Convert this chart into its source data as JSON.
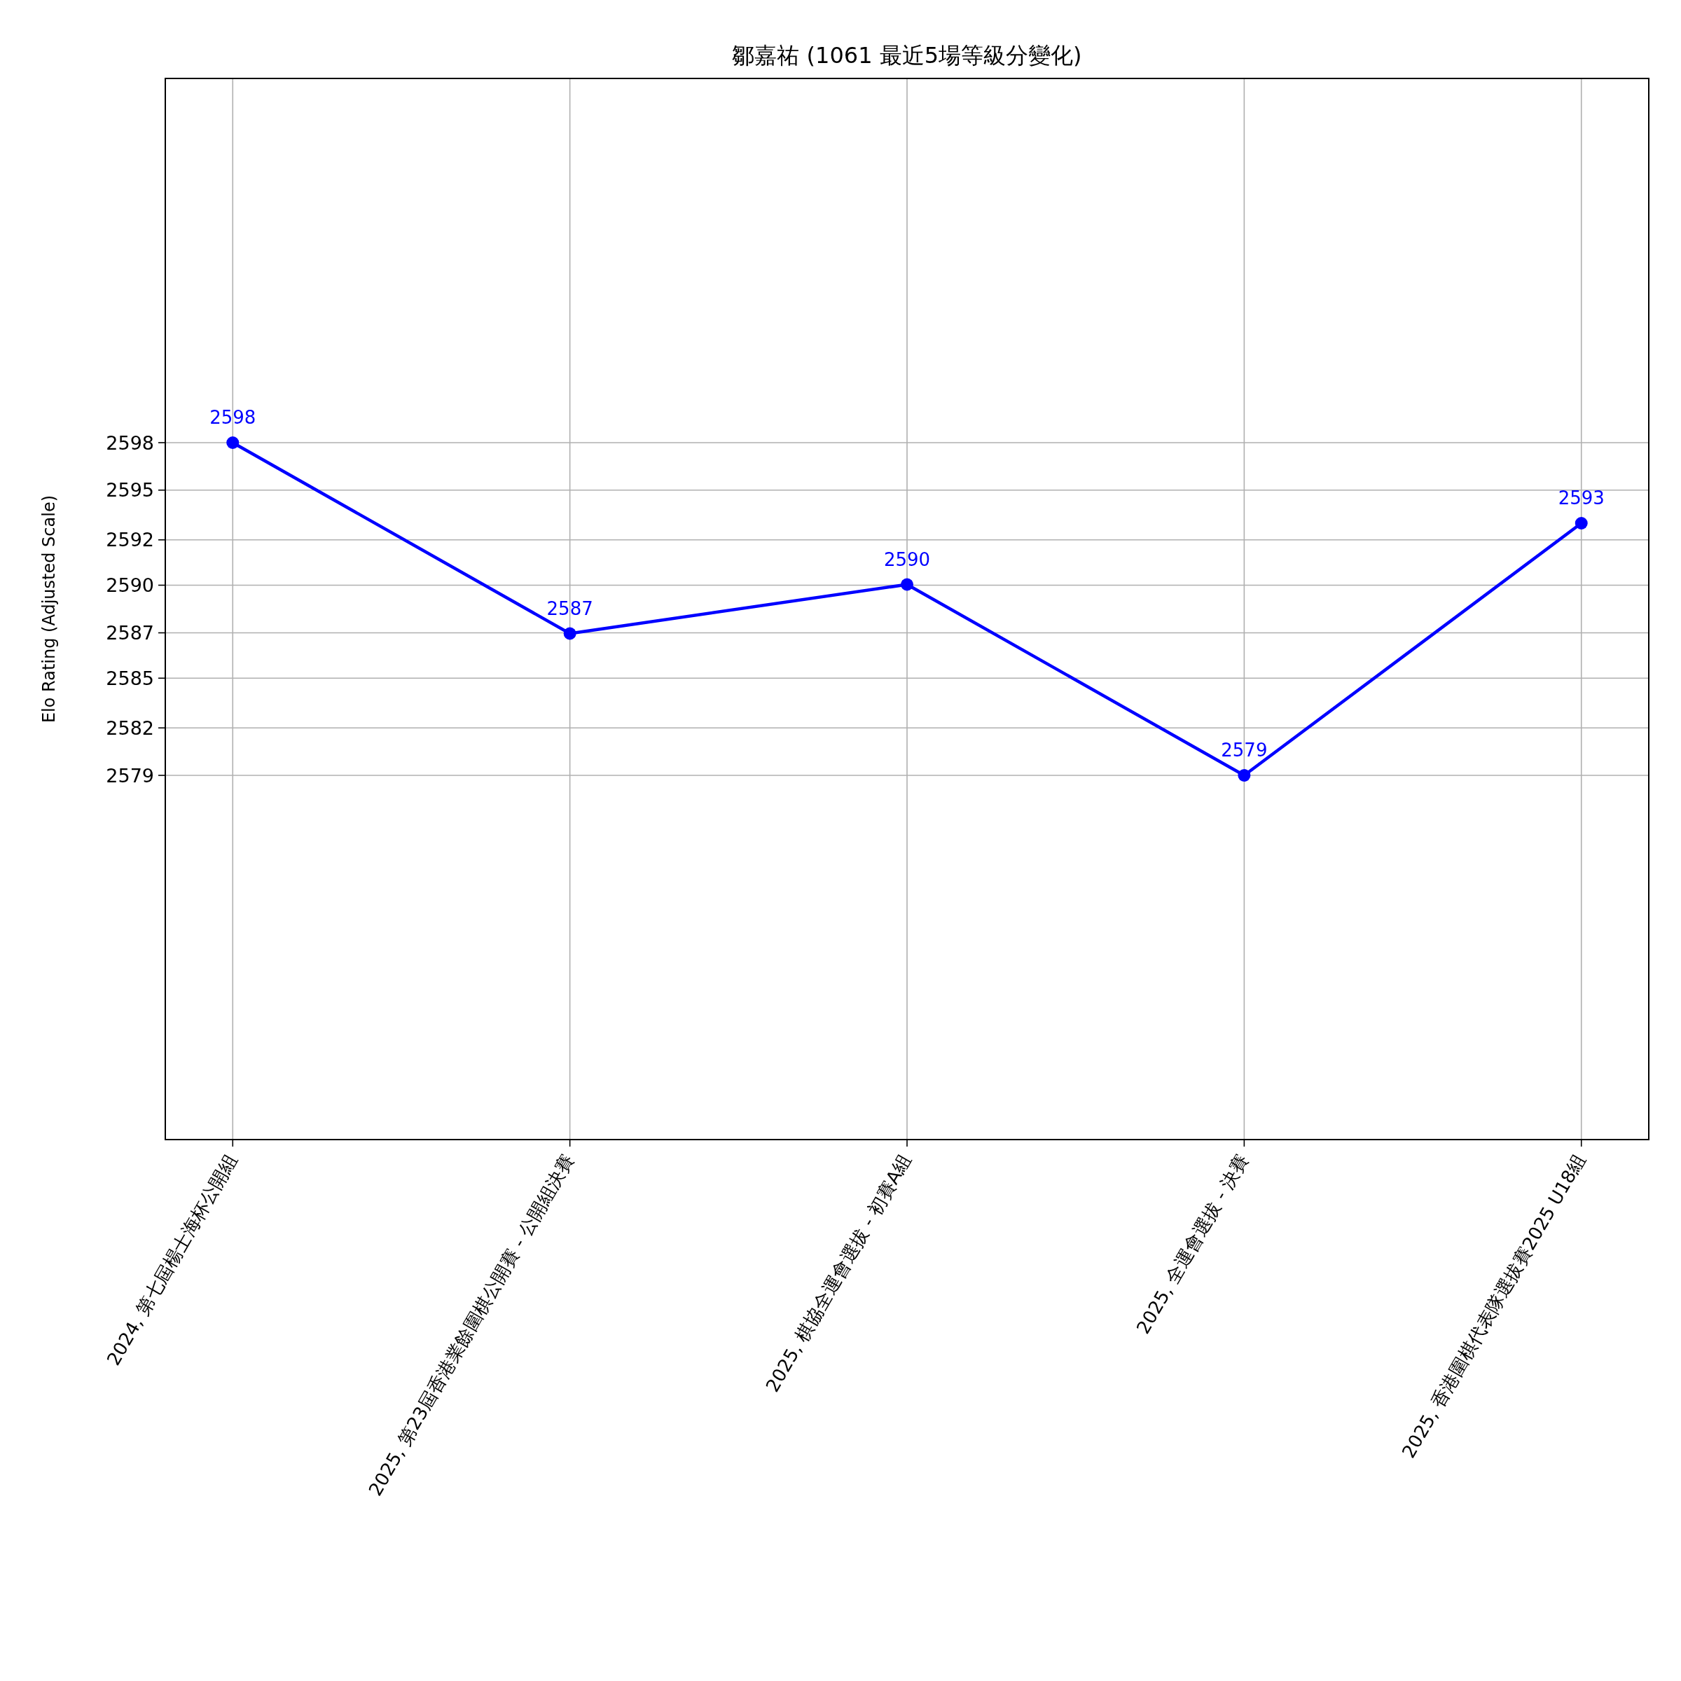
{
  "chart_data": {
    "type": "line",
    "title": "鄒嘉祐 (1061 最近5場等級分變化)",
    "ylabel": "Elo Rating (Adjusted Scale)",
    "categories": [
      "2024, 第七屆楊士海杯公開組",
      "2025, 第23屆香港業餘圍棋公開賽 - 公開組決賽",
      "2025, 棋協全運會選拔 - 初賽A組",
      "2025, 全運會選拔 - 決賽",
      "2025, 香港圍棋代表隊選拔賽2025 U18組"
    ],
    "series": [
      {
        "color": "#0000ff",
        "values": [
          2598,
          2587.1,
          2589.9,
          2579,
          2593.4
        ],
        "value_labels": [
          "2598",
          "2587",
          "2590",
          "2579",
          "2593"
        ]
      }
    ],
    "ylim": [
      2558.2,
      2618.8
    ],
    "yticks": [
      2579,
      {
        "value": 2581.71,
        "label": "2582"
      },
      {
        "value": 2584.55,
        "label": "2585"
      },
      {
        "value": 2587.14,
        "label": "2587"
      },
      {
        "value": 2589.86,
        "label": "2590"
      },
      {
        "value": 2592.45,
        "label": "2592"
      },
      {
        "value": 2595.29,
        "label": "2595"
      },
      2598
    ],
    "grid": true,
    "marker": "circle",
    "line_style": "solid"
  }
}
